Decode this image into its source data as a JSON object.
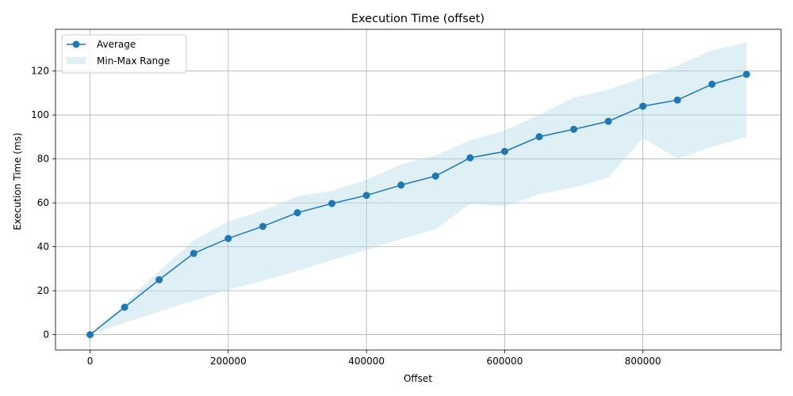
{
  "chart_data": {
    "type": "line",
    "title": "Execution Time (offset)",
    "xlabel": "Offset",
    "ylabel": "Execution Time (ms)",
    "xlim": [
      -50000,
      1000000
    ],
    "ylim": [
      -7,
      139
    ],
    "xticks": [
      0,
      200000,
      400000,
      600000,
      800000
    ],
    "yticks": [
      0,
      20,
      40,
      60,
      80,
      100,
      120
    ],
    "grid": true,
    "legend_position": "top-left",
    "x": [
      0,
      50000,
      100000,
      150000,
      200000,
      250000,
      300000,
      350000,
      400000,
      450000,
      500000,
      550000,
      600000,
      650000,
      700000,
      750000,
      800000,
      850000,
      900000,
      950000
    ],
    "series": [
      {
        "name": "Average",
        "color": "#1f77b4",
        "values": [
          0,
          12.5,
          25,
          37,
          43.8,
          49.3,
          55.5,
          59.7,
          63.4,
          68.1,
          72.2,
          80.5,
          83.4,
          90.1,
          93.5,
          97.1,
          104,
          106.8,
          114,
          118.5
        ]
      }
    ],
    "range": {
      "name": "Min-Max Range",
      "color": "#add8e6",
      "min": [
        0,
        5.5,
        10.5,
        15.5,
        20.5,
        24.5,
        29,
        34,
        38.5,
        43.5,
        48,
        59.5,
        58.5,
        64,
        67,
        71.5,
        89.5,
        80,
        85.5,
        90
      ],
      "max": [
        0,
        14,
        29,
        43,
        51.5,
        56.5,
        63,
        65.5,
        70.5,
        77.5,
        81.5,
        88.5,
        93,
        100,
        108,
        111.5,
        117,
        122.5,
        129.5,
        133
      ]
    }
  }
}
